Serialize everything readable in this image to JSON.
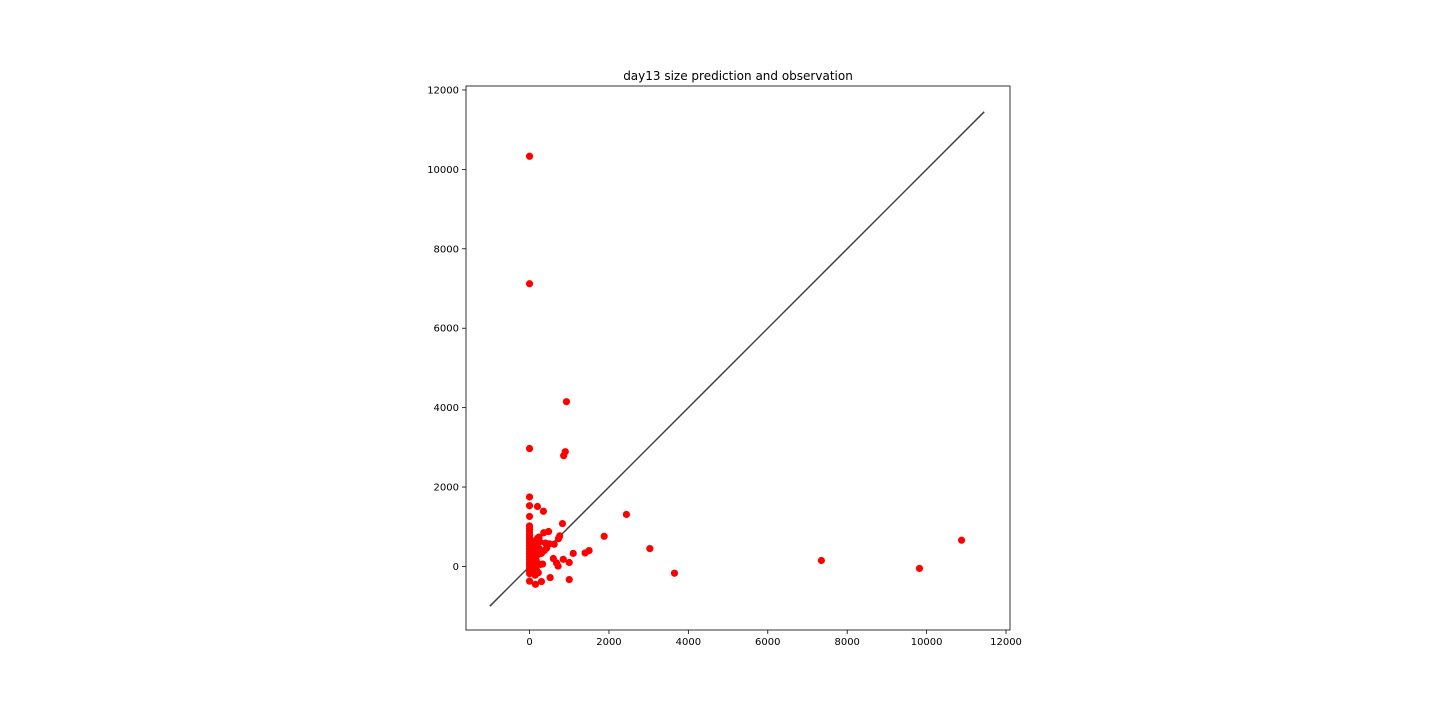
{
  "chart_data": {
    "type": "scatter",
    "title": "day13 size prediction and observation",
    "xlabel": "",
    "ylabel": "",
    "xlim": [
      -1600,
      12100
    ],
    "ylim": [
      -1600,
      12100
    ],
    "xticks": [
      0,
      2000,
      4000,
      6000,
      8000,
      10000,
      12000
    ],
    "yticks": [
      0,
      2000,
      4000,
      6000,
      8000,
      10000,
      12000
    ],
    "xtick_labels": [
      "0",
      "2000",
      "4000",
      "6000",
      "8000",
      "10000",
      "12000"
    ],
    "ytick_labels": [
      "0",
      "2000",
      "4000",
      "6000",
      "8000",
      "10000",
      "12000"
    ],
    "grid": false,
    "legend": "none",
    "reference_line": {
      "from": [
        -1000,
        -1000
      ],
      "to": [
        11450,
        11450
      ],
      "color": "#404040"
    },
    "marker_color": "#ff0000",
    "points": [
      [
        0,
        10330
      ],
      [
        0,
        7120
      ],
      [
        0,
        2970
      ],
      [
        0,
        1750
      ],
      [
        0,
        1530
      ],
      [
        0,
        1260
      ],
      [
        0,
        1020
      ],
      [
        0,
        950
      ],
      [
        0,
        880
      ],
      [
        0,
        800
      ],
      [
        0,
        730
      ],
      [
        0,
        660
      ],
      [
        0,
        590
      ],
      [
        0,
        520
      ],
      [
        0,
        450
      ],
      [
        0,
        380
      ],
      [
        0,
        310
      ],
      [
        0,
        240
      ],
      [
        0,
        170
      ],
      [
        0,
        100
      ],
      [
        0,
        30
      ],
      [
        0,
        -40
      ],
      [
        0,
        -110
      ],
      [
        0,
        -180
      ],
      [
        0,
        -370
      ],
      [
        50,
        560
      ],
      [
        60,
        300
      ],
      [
        70,
        120
      ],
      [
        80,
        -60
      ],
      [
        90,
        420
      ],
      [
        110,
        600
      ],
      [
        120,
        250
      ],
      [
        130,
        50
      ],
      [
        140,
        -220
      ],
      [
        150,
        650
      ],
      [
        150,
        -450
      ],
      [
        160,
        380
      ],
      [
        170,
        150
      ],
      [
        180,
        -100
      ],
      [
        190,
        500
      ],
      [
        200,
        1510
      ],
      [
        200,
        710
      ],
      [
        210,
        300
      ],
      [
        220,
        -160
      ],
      [
        240,
        740
      ],
      [
        250,
        440
      ],
      [
        260,
        620
      ],
      [
        270,
        50
      ],
      [
        300,
        330
      ],
      [
        300,
        -380
      ],
      [
        330,
        60
      ],
      [
        350,
        1390
      ],
      [
        360,
        850
      ],
      [
        370,
        400
      ],
      [
        400,
        590
      ],
      [
        430,
        460
      ],
      [
        480,
        880
      ],
      [
        500,
        570
      ],
      [
        520,
        -280
      ],
      [
        600,
        200
      ],
      [
        620,
        560
      ],
      [
        680,
        90
      ],
      [
        720,
        10
      ],
      [
        730,
        700
      ],
      [
        760,
        770
      ],
      [
        830,
        1080
      ],
      [
        850,
        180
      ],
      [
        860,
        2790
      ],
      [
        900,
        2890
      ],
      [
        930,
        4150
      ],
      [
        1000,
        -330
      ],
      [
        1000,
        100
      ],
      [
        1100,
        330
      ],
      [
        1400,
        340
      ],
      [
        1500,
        400
      ],
      [
        1880,
        760
      ],
      [
        2440,
        1310
      ],
      [
        3030,
        450
      ],
      [
        3650,
        -170
      ],
      [
        7350,
        150
      ],
      [
        9820,
        -50
      ],
      [
        10880,
        660
      ]
    ]
  }
}
